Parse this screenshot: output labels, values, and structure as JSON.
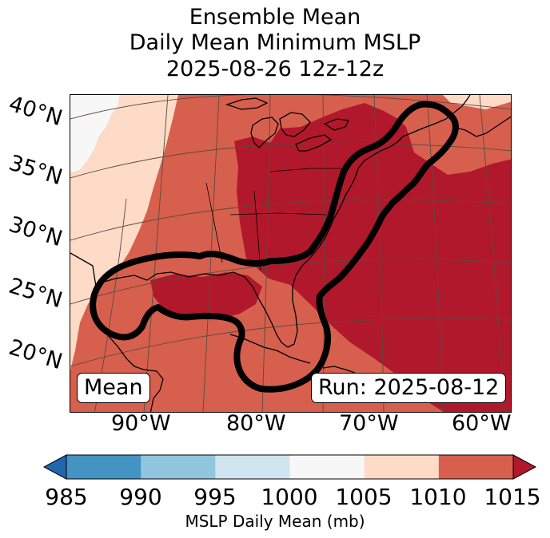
{
  "title": {
    "line1": "Ensemble Mean",
    "line2": "Daily Mean Minimum MSLP",
    "line3": "2025-08-26 12z-12z"
  },
  "map": {
    "latitude_labels": [
      "40°N",
      "35°N",
      "30°N",
      "25°N",
      "20°N"
    ],
    "longitude_labels": [
      "90°W",
      "80°W",
      "70°W",
      "60°W"
    ],
    "mean_label": "Mean",
    "run_label": "Run: 2025-08-12",
    "outline_color": "#000000"
  },
  "colorbar": {
    "label": "MSLP Daily Mean (mb)",
    "ticks": [
      "985",
      "990",
      "995",
      "1000",
      "1005",
      "1010",
      "1015"
    ],
    "colors": [
      "#4393c3",
      "#92c5de",
      "#d1e5f0",
      "#f7f7f7",
      "#fddbc7",
      "#d6604d",
      "#b2182b"
    ],
    "under_color": "#2166ac",
    "over_color": "#b2182b"
  }
}
